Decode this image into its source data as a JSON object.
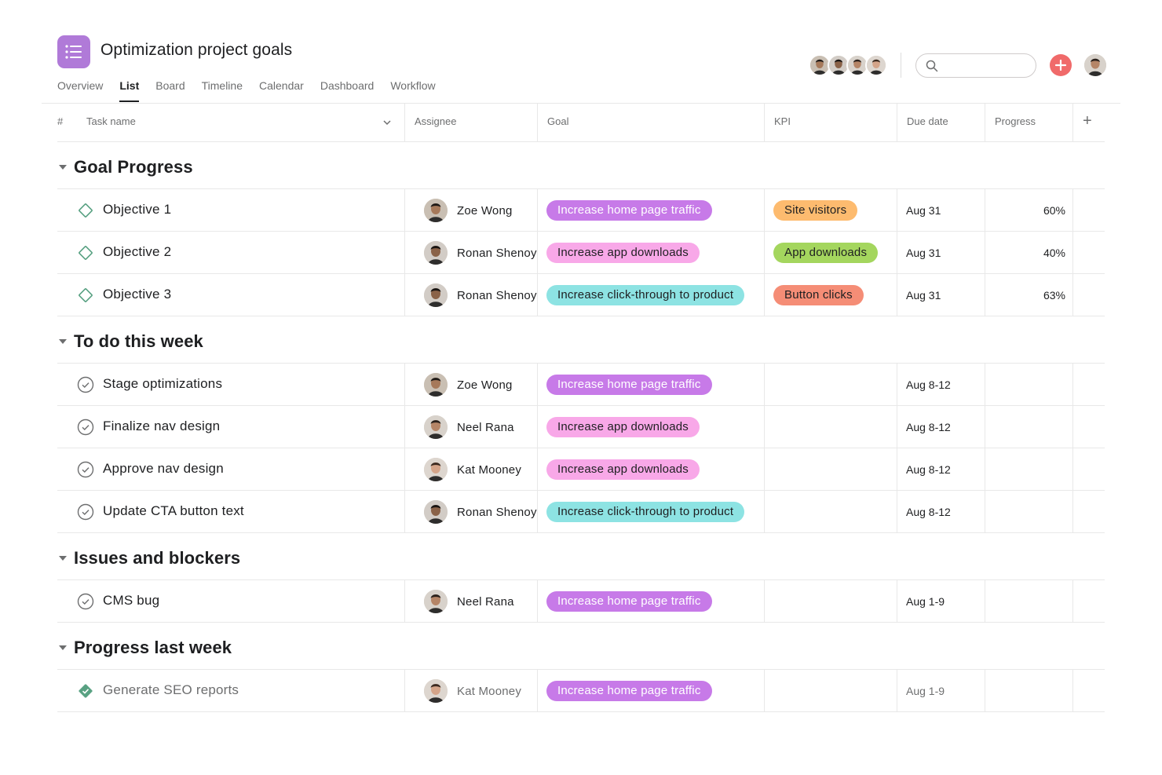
{
  "header": {
    "title": "Optimization project goals",
    "tabs": [
      {
        "label": "Overview",
        "active": false
      },
      {
        "label": "List",
        "active": true
      },
      {
        "label": "Board",
        "active": false
      },
      {
        "label": "Timeline",
        "active": false
      },
      {
        "label": "Calendar",
        "active": false
      },
      {
        "label": "Dashboard",
        "active": false
      },
      {
        "label": "Workflow",
        "active": false
      }
    ],
    "search": {
      "value": "",
      "placeholder": ""
    }
  },
  "columns": {
    "number": "#",
    "task_name": "Task name",
    "assignee": "Assignee",
    "goal": "Goal",
    "kpi": "KPI",
    "due_date": "Due date",
    "progress": "Progress",
    "add": "+"
  },
  "colors": {
    "pink": "#f8a8e8",
    "purple": "#c77ae8",
    "teal": "#8de3e3",
    "orange": "#fdbb6f",
    "green": "#a4d65e",
    "red": "#f58d76",
    "accent_red": "#f06a6a",
    "app_icon": "#b07ad8",
    "done_green": "#58a182"
  },
  "sections": [
    {
      "title": "Goal Progress",
      "rows": [
        {
          "name": "Objective 1",
          "icon": "goal-diamond-icon",
          "assignee": "Zoe Wong",
          "goal": "Increase home page traffic",
          "goal_color": "purple",
          "kpi": "Site visitors",
          "kpi_color": "orange",
          "due": "Aug 31",
          "progress": "60%"
        },
        {
          "name": "Objective 2",
          "icon": "goal-diamond-icon",
          "assignee": "Ronan Shenoy",
          "goal": "Increase app downloads",
          "goal_color": "pink",
          "kpi": "App downloads",
          "kpi_color": "green",
          "due": "Aug 31",
          "progress": "40%"
        },
        {
          "name": "Objective 3",
          "icon": "goal-diamond-icon",
          "assignee": "Ronan Shenoy",
          "goal": "Increase click-through to product",
          "goal_color": "teal",
          "kpi": "Button clicks",
          "kpi_color": "red",
          "due": "Aug 31",
          "progress": "63%"
        }
      ]
    },
    {
      "title": "To do this week",
      "rows": [
        {
          "name": "Stage optimizations",
          "icon": "check-circle-icon",
          "assignee": "Zoe Wong",
          "goal": "Increase home page traffic",
          "goal_color": "purple",
          "kpi": "",
          "due": "Aug 8-12",
          "progress": ""
        },
        {
          "name": "Finalize nav design",
          "icon": "check-circle-icon",
          "assignee": "Neel Rana",
          "goal": "Increase app downloads",
          "goal_color": "pink",
          "kpi": "",
          "due": "Aug 8-12",
          "progress": ""
        },
        {
          "name": "Approve nav design",
          "icon": "check-circle-icon",
          "assignee": "Kat Mooney",
          "goal": "Increase app downloads",
          "goal_color": "pink",
          "kpi": "",
          "due": "Aug 8-12",
          "progress": ""
        },
        {
          "name": "Update CTA button text",
          "icon": "check-circle-icon",
          "assignee": "Ronan Shenoy",
          "goal": "Increase click-through to product",
          "goal_color": "teal",
          "kpi": "",
          "due": "Aug 8-12",
          "progress": ""
        }
      ]
    },
    {
      "title": "Issues and blockers",
      "rows": [
        {
          "name": "CMS bug",
          "icon": "check-circle-icon",
          "assignee": "Neel Rana",
          "goal": "Increase home page traffic",
          "goal_color": "purple",
          "kpi": "",
          "due": "Aug 1-9",
          "progress": ""
        }
      ]
    },
    {
      "title": "Progress last week",
      "rows": [
        {
          "name": "Generate SEO reports",
          "icon": "completed-diamond-icon",
          "assignee": "Kat Mooney",
          "goal": "Increase home page traffic",
          "goal_color": "purple",
          "kpi": "",
          "due": "Aug 1-9",
          "progress": "",
          "completed": true
        }
      ]
    }
  ]
}
